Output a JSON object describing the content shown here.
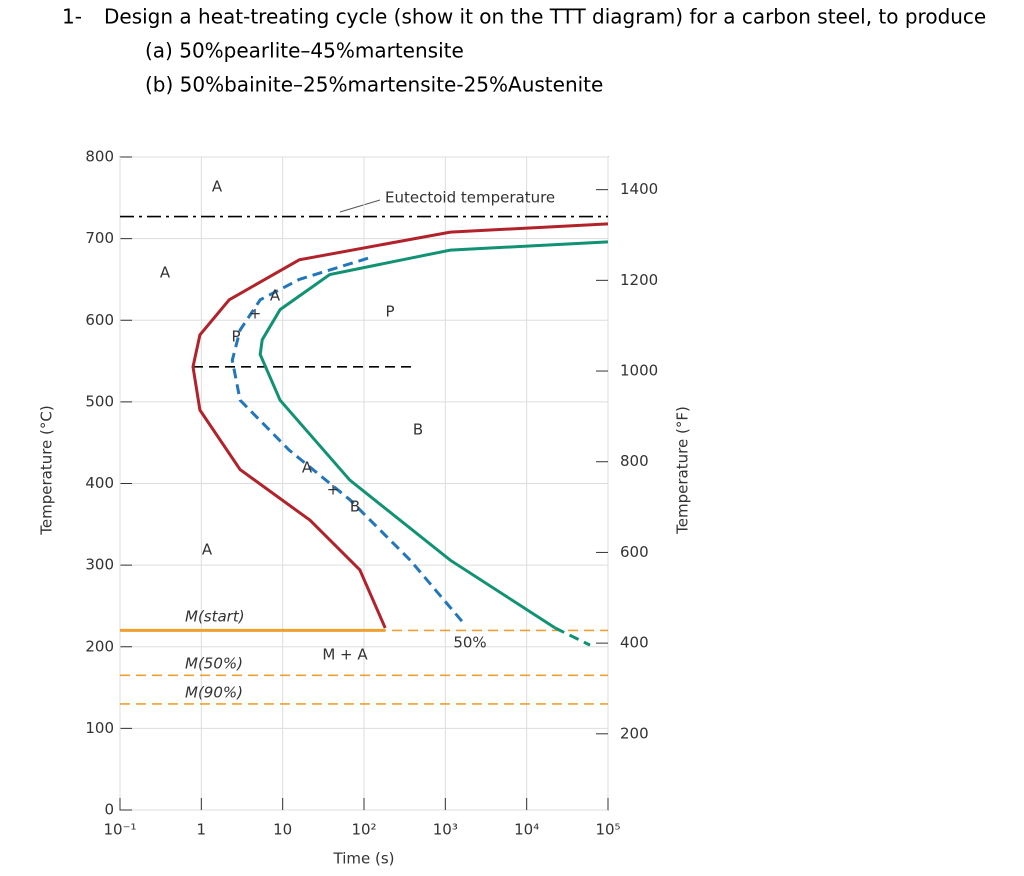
{
  "question": {
    "number": "1-",
    "text": "Design a heat-treating cycle (show it on the TTT diagram) for a carbon steel, to produce",
    "parts": [
      "(a) 50%pearlite–45%martensite",
      "(b) 50%bainite–25%martensite-25%Austenite"
    ]
  },
  "chart_data": {
    "type": "line",
    "x_label": "Time (s)",
    "y_label": "Temperature (°C)",
    "y2_label": "Temperature (°F)",
    "x_scale": "log",
    "xlim": [
      0.1,
      100000
    ],
    "xticks": [
      {
        "value": 0.1,
        "label": "10⁻¹"
      },
      1,
      10,
      {
        "value": 100,
        "label": "10²"
      },
      {
        "value": 1000,
        "label": "10³"
      },
      {
        "value": 10000,
        "label": "10⁴"
      },
      {
        "value": 100000,
        "label": "10⁵"
      }
    ],
    "ylim": [
      0,
      800
    ],
    "yticks": [
      0,
      100,
      200,
      300,
      400,
      500,
      600,
      700,
      800
    ],
    "y2lim": [
      32,
      1472
    ],
    "y2ticks": [
      200,
      400,
      600,
      800,
      1000,
      1200,
      1400
    ],
    "grid": true,
    "series": [
      {
        "color": "#b2222a",
        "style": "solid",
        "x": [
          100000,
          1150,
          16,
          2.2,
          0.96,
          0.79,
          0.96,
          3.0,
          21.7,
          89,
          182
        ],
        "values": [
          718,
          708,
          674,
          625,
          582,
          543,
          490,
          417,
          355,
          294,
          223
        ]
      },
      {
        "color": "#119273",
        "style": "solid",
        "x": [
          100000,
          1150,
          38,
          9.3,
          5.6,
          5.3,
          9.3,
          67,
          1150,
          22400
        ],
        "values": [
          696,
          686,
          656,
          613,
          576,
          558,
          502,
          404,
          306,
          223
        ]
      },
      {
        "color": "#119273",
        "style": "dashed",
        "x": [
          22400,
          60000
        ],
        "values": [
          223,
          202
        ]
      },
      {
        "color": "#2277bb",
        "style": "dashed",
        "x": [
          112,
          16,
          5.3,
          3.0,
          2.4,
          3.0,
          12,
          67,
          370,
          1740
        ],
        "values": [
          676,
          650,
          625,
          588,
          551,
          502,
          441,
          380,
          306,
          227
        ]
      }
    ],
    "reference_lines": [
      {
        "label": "Eutectoid temperature",
        "value": 727,
        "color": "#000000",
        "style": "dashdot"
      },
      {
        "value": 543,
        "color": "#000000",
        "style": "dashed"
      },
      {
        "label": "M(start)",
        "value": 220,
        "color": "#f0a030",
        "style": "dashed"
      },
      {
        "label": "M(50%)",
        "value": 165,
        "color": "#f0a030",
        "style": "dashed"
      },
      {
        "label": "M(90%)",
        "value": 130,
        "color": "#f0a030",
        "style": "dashed"
      }
    ],
    "annotations": [
      "A",
      "A",
      "A",
      "P",
      "B",
      "M + A",
      "50%",
      "A",
      "+",
      "P",
      "A",
      "+",
      "B"
    ]
  }
}
